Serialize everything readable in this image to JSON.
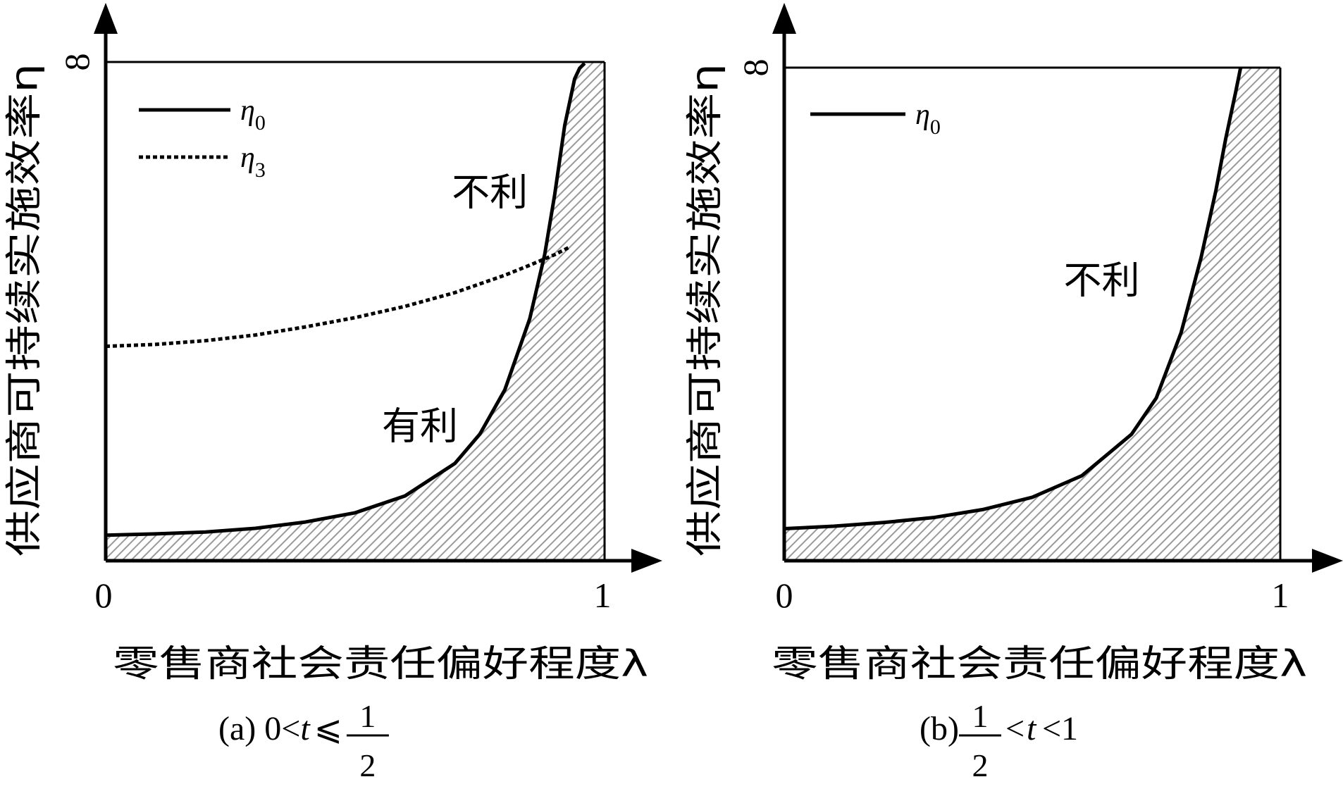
{
  "chart_data": [
    {
      "type": "line",
      "panel": "a",
      "xlabel": "零售商社会责任偏好程度λ",
      "ylabel": "供应商可持续实施效率η",
      "xticks": [
        "0",
        "1"
      ],
      "yticks": [
        "8"
      ],
      "xlim": [
        0,
        1
      ],
      "ylim": [
        0,
        8
      ],
      "caption": {
        "prefix": "(a) 0<",
        "var": "t",
        "rel": "⩽",
        "num": "1",
        "den": "2",
        "suffix": ""
      },
      "series": [
        {
          "name": "η0",
          "label_base": "η",
          "label_sub": "0",
          "style": "solid",
          "x": [
            0,
            0.1,
            0.2,
            0.3,
            0.4,
            0.5,
            0.6,
            0.7,
            0.75,
            0.8,
            0.85,
            0.88,
            0.9,
            0.92,
            0.94,
            0.95,
            0.96
          ],
          "y": [
            0.41,
            0.43,
            0.46,
            0.52,
            0.62,
            0.77,
            1.04,
            1.56,
            2.03,
            2.74,
            3.88,
            4.91,
            5.87,
            6.98,
            7.73,
            7.9,
            7.98
          ]
        },
        {
          "name": "η3",
          "label_base": "η",
          "label_sub": "3",
          "style": "dotted",
          "x": [
            0,
            0.1,
            0.2,
            0.3,
            0.4,
            0.5,
            0.6,
            0.7,
            0.8,
            0.85,
            0.9,
            0.93
          ],
          "y": [
            3.44,
            3.47,
            3.53,
            3.62,
            3.75,
            3.9,
            4.08,
            4.3,
            4.58,
            4.74,
            4.91,
            5.03
          ]
        }
      ],
      "shaded_region": "below η0",
      "annotations": [
        {
          "text": "不利",
          "x": 0.77,
          "y": 5.7
        },
        {
          "text": "有利",
          "x": 0.63,
          "y": 1.95
        }
      ]
    },
    {
      "type": "line",
      "panel": "b",
      "xlabel": "零售商社会责任偏好程度λ",
      "ylabel": "供应商可持续实施效率η",
      "xticks": [
        "0",
        "1"
      ],
      "yticks": [
        "8"
      ],
      "xlim": [
        0,
        1
      ],
      "ylim": [
        0,
        8
      ],
      "caption": {
        "prefix": "(b) ",
        "var": "t",
        "rel": "<1",
        "num": "1",
        "den": "2",
        "suffix": ""
      },
      "series": [
        {
          "name": "η0",
          "label_base": "η",
          "label_sub": "0",
          "style": "solid",
          "x": [
            0,
            0.1,
            0.2,
            0.3,
            0.4,
            0.5,
            0.6,
            0.7,
            0.75,
            0.8,
            0.84,
            0.87,
            0.89,
            0.91,
            0.92
          ],
          "y": [
            0.52,
            0.56,
            0.62,
            0.7,
            0.83,
            1.03,
            1.38,
            2.05,
            2.64,
            3.7,
            4.91,
            6.0,
            6.85,
            7.6,
            8.0
          ]
        }
      ],
      "shaded_region": "below η0",
      "annotations": [
        {
          "text": "不利",
          "x": 0.64,
          "y": 4.34
        }
      ]
    }
  ]
}
